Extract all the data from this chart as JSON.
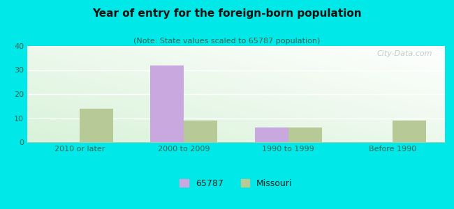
{
  "title": "Year of entry for the foreign-born population",
  "subtitle": "(Note: State values scaled to 65787 population)",
  "categories": [
    "2010 or later",
    "2000 to 2009",
    "1990 to 1999",
    "Before 1990"
  ],
  "values_65787": [
    0,
    32,
    6,
    0
  ],
  "values_missouri": [
    14,
    9,
    6,
    9
  ],
  "color_65787": "#c9a8e0",
  "color_missouri": "#b8c998",
  "background_outer": "#00e8e8",
  "ylim": [
    0,
    40
  ],
  "yticks": [
    0,
    10,
    20,
    30,
    40
  ],
  "bar_width": 0.32,
  "legend_label_65787": "65787",
  "legend_label_missouri": "Missouri",
  "watermark": "City-Data.com",
  "title_fontsize": 11,
  "subtitle_fontsize": 8,
  "tick_fontsize": 8
}
